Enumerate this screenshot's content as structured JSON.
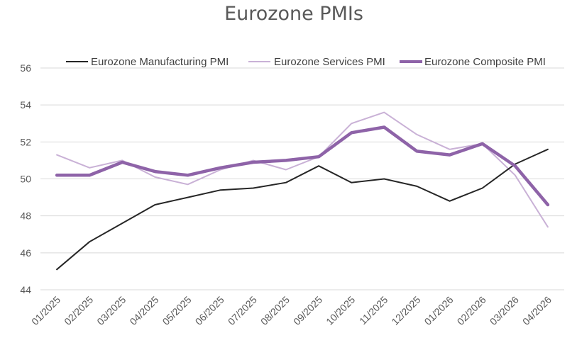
{
  "chart_data": {
    "type": "line",
    "title": "Eurozone PMIs",
    "xlabel": "",
    "ylabel": "",
    "ylim": [
      44,
      56
    ],
    "yticks": [
      "44",
      "46",
      "48",
      "50",
      "52",
      "54",
      "56"
    ],
    "grid": true,
    "legend_position": "top",
    "categories": [
      "01/2025",
      "02/2025",
      "03/2025",
      "04/2025",
      "05/2025",
      "06/2025",
      "07/2025",
      "08/2025",
      "09/2025",
      "10/2025",
      "11/2025",
      "12/2025",
      "01/2026",
      "02/2026",
      "03/2026",
      "04/2026"
    ],
    "series": [
      {
        "name": "Eurozone Manufacturing PMI",
        "color": "#262626",
        "values": [
          45.1,
          46.6,
          47.6,
          48.6,
          49.0,
          49.4,
          49.5,
          49.8,
          50.7,
          49.8,
          50.0,
          49.6,
          48.8,
          49.5,
          50.8,
          51.6
        ]
      },
      {
        "name": "Eurozone Services PMI",
        "color": "#c9b1d6",
        "values": [
          51.3,
          50.6,
          51.0,
          50.1,
          49.7,
          50.5,
          51.0,
          50.5,
          51.2,
          53.0,
          53.6,
          52.4,
          51.6,
          51.9,
          50.2,
          47.4
        ]
      },
      {
        "name": "Eurozone Composite PMI",
        "color": "#8e63a8",
        "values": [
          50.2,
          50.2,
          50.9,
          50.4,
          50.2,
          50.6,
          50.9,
          51.0,
          51.2,
          52.5,
          52.8,
          51.5,
          51.3,
          51.9,
          50.7,
          48.6
        ]
      }
    ]
  }
}
